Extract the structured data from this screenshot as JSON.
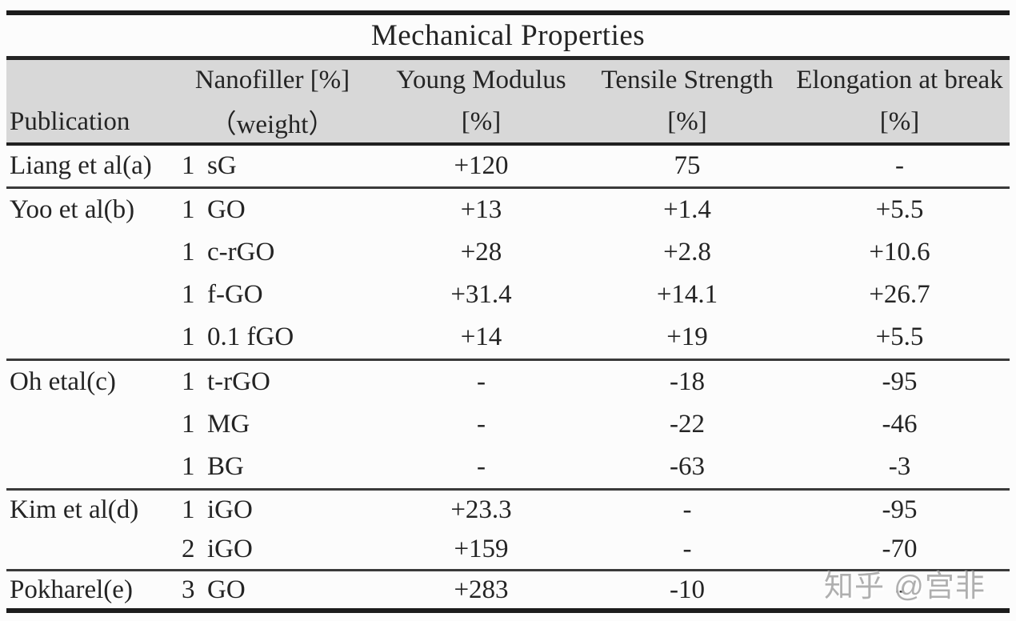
{
  "title": "Mechanical Properties",
  "header": {
    "publication": "Publication",
    "nanofiller_line1": "Nanofiller [%]",
    "nanofiller_line2": "（weight）",
    "young_line1": "Young Modulus",
    "young_line2": "[%]",
    "tensile_line1": "Tensile Strength",
    "tensile_line2": "[%]",
    "elongation_line1": "Elongation at break",
    "elongation_line2": "[%]"
  },
  "rows": [
    {
      "pub": "Liang et al(a)",
      "num": "1",
      "name": "sG",
      "ym": "+120",
      "ts": "75",
      "eb": "-"
    },
    {
      "pub": "Yoo et al(b)",
      "num": "1",
      "name": "GO",
      "ym": "+13",
      "ts": "+1.4",
      "eb": "+5.5"
    },
    {
      "pub": "",
      "num": "1",
      "name": "c-rGO",
      "ym": "+28",
      "ts": "+2.8",
      "eb": "+10.6"
    },
    {
      "pub": "",
      "num": "1",
      "name": "f-GO",
      "ym": "+31.4",
      "ts": "+14.1",
      "eb": "+26.7"
    },
    {
      "pub": "",
      "num": "1",
      "name": "0.1 fGO",
      "ym": "+14",
      "ts": "+19",
      "eb": "+5.5"
    },
    {
      "pub": "Oh etal(c)",
      "num": "1",
      "name": "t-rGO",
      "ym": "-",
      "ts": "-18",
      "eb": "-95"
    },
    {
      "pub": "",
      "num": "1",
      "name": "MG",
      "ym": "-",
      "ts": "-22",
      "eb": "-46"
    },
    {
      "pub": "",
      "num": "1",
      "name": "BG",
      "ym": "-",
      "ts": "-63",
      "eb": "-3"
    },
    {
      "pub": "Kim et al(d)",
      "num": "1",
      "name": "iGO",
      "ym": "+23.3",
      "ts": "-",
      "eb": "-95"
    },
    {
      "pub": "",
      "num": "2",
      "name": "iGO",
      "ym": "+159",
      "ts": "-",
      "eb": "-70"
    },
    {
      "pub": "Pokharel(e)",
      "num": "3",
      "name": "GO",
      "ym": "+283",
      "ts": "-10",
      "eb": "-"
    }
  ],
  "watermark": {
    "text": "知乎 @宫非"
  },
  "colors": {
    "header_background": "#d8d8d8",
    "rule": "#1c1c1c",
    "text": "#242424",
    "watermark": "#ababab",
    "page_background": "#fcfcfc"
  }
}
